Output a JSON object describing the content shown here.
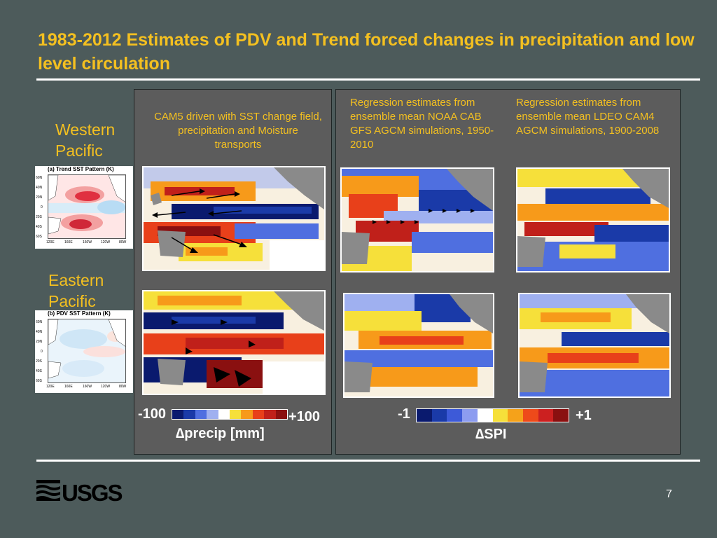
{
  "slide": {
    "title": "1983-2012 Estimates of PDV and Trend forced changes in precipitation and low level circulation",
    "page_number": "7"
  },
  "labels": {
    "western_pacific": "Western Pacific",
    "eastern_pacific": "Eastern Pacific"
  },
  "captions": {
    "cam5": "CAM5 driven with SST change field, precipitation and Moisture transports",
    "noaa": "Regression estimates from ensemble mean NOAA CAB GFS AGCM simulations, 1950-2010",
    "ldeo": "Regression estimates from ensemble mean LDEO CAM4 AGCM simulations, 1900-2008"
  },
  "sst_panels": {
    "trend": {
      "title": "(a) Trend SST Pattern (K)",
      "lat_ticks": [
        "60N",
        "40N",
        "20N",
        "0",
        "20S",
        "40S",
        "60S"
      ],
      "lon_ticks": [
        "120E",
        "160E",
        "160W",
        "120W",
        "80W"
      ]
    },
    "pdv": {
      "title": "(b) PDV SST Pattern (K)",
      "lat_ticks": [
        "60N",
        "40N",
        "20N",
        "0",
        "20S",
        "40S",
        "60S"
      ],
      "lon_ticks": [
        "120E",
        "160E",
        "160W",
        "120W",
        "80W"
      ]
    }
  },
  "colorbars": {
    "precip": {
      "min_label": "-100",
      "max_label": "+100",
      "title": "∆precip [mm]",
      "colors": [
        "#0a1a6e",
        "#1a3aa8",
        "#4f6fe0",
        "#9fb0f0",
        "#ffffff",
        "#f6e03a",
        "#f79a1a",
        "#e8401a",
        "#c0201a",
        "#8a1010"
      ]
    },
    "spi": {
      "min_label": "-1",
      "max_label": "+1",
      "title": "∆SPI",
      "colors": [
        "#0a1a6e",
        "#1a3aa8",
        "#3d5ad8",
        "#8c9cf0",
        "#ffffff",
        "#f6e03a",
        "#f5a21a",
        "#ee4a1a",
        "#cc2020",
        "#8a1010"
      ]
    }
  },
  "logo": {
    "text": "USGS"
  }
}
